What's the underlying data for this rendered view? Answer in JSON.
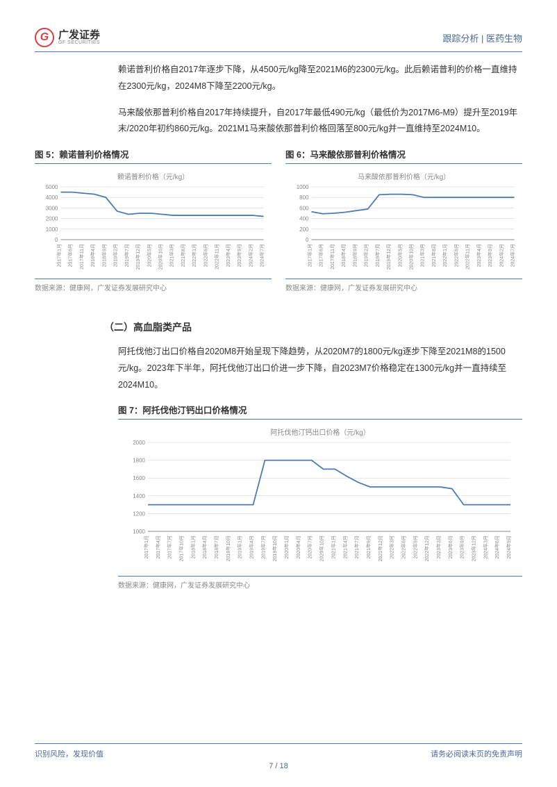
{
  "header": {
    "logo_letter": "G",
    "logo_cn": "广发证券",
    "logo_en": "GF SECURITIES",
    "category": "跟踪分析 | 医药生物"
  },
  "paragraphs": {
    "p1": "赖诺普利价格自2017年逐步下降，从4500元/kg降至2021M6的2300元/kg。此后赖诺普利的价格一直维持在2300元/kg，2024M8下降至2200元/kg。",
    "p2": "马来酸依那普利价格自2017年持续提升，自2017年最低490元/kg（最低价为2017M6-M9）提升至2019年末/2020年初约860元/kg。2021M1马来酸依那普利价格回落至800元/kg并一直维持至2024M10。",
    "p3": "阿托伐他汀出口价格自2020M8开始呈现下降趋势，从2020M7的1800元/kg逐步下降至2021M8的1500元/kg。2023年下半年，阿托伐他汀出口价进一步下降，自2023M7价格稳定在1300元/kg并一直持续至2024M10。"
  },
  "section2_title": "（二）高血脂类产品",
  "fig5": {
    "title": "图 5：赖诺普利价格情况",
    "chart_label": "赖诺普利价格（元/kg）",
    "source": "数据来源：健康网，广发证券发展研究中心",
    "type": "line",
    "ylim": [
      0,
      5000
    ],
    "ytick_step": 1000,
    "yticks": [
      0,
      1000,
      2000,
      3000,
      4000,
      5000
    ],
    "x_labels": [
      "2017年1月",
      "2017年6月",
      "2017年11月",
      "2018年4月",
      "2018年9月",
      "2019年2月",
      "2019年7月",
      "2019年12月",
      "2020年5月",
      "2020年10月",
      "2021年3月",
      "2021年8月",
      "2022年1月",
      "2022年6月",
      "2022年11月",
      "2023年4月",
      "2023年9月",
      "2024年2月",
      "2024年7月"
    ],
    "values": [
      4500,
      4500,
      4400,
      4300,
      4000,
      2700,
      2400,
      2500,
      2500,
      2400,
      2300,
      2300,
      2300,
      2300,
      2300,
      2300,
      2300,
      2300,
      2200
    ],
    "line_color": "#4a7bb5",
    "grid_color": "#cccccc",
    "background_color": "#ffffff"
  },
  "fig6": {
    "title": "图 6：马来酸依那普利价格情况",
    "chart_label": "马来酸依那普利价格（元/kg）",
    "source": "数据来源：健康网，广发证券发展研究中心",
    "type": "line",
    "ylim": [
      0,
      1000
    ],
    "ytick_step": 200,
    "yticks": [
      0,
      200,
      400,
      600,
      800,
      1000
    ],
    "x_labels": [
      "2017年1月",
      "2017年6月",
      "2017年11月",
      "2018年4月",
      "2018年9月",
      "2019年2月",
      "2019年7月",
      "2019年12月",
      "2020年5月",
      "2020年10月",
      "2021年3月",
      "2021年8月",
      "2022年1月",
      "2022年6月",
      "2022年11月",
      "2023年4月",
      "2023年9月",
      "2024年2月",
      "2024年7月"
    ],
    "values": [
      530,
      490,
      500,
      520,
      550,
      580,
      850,
      860,
      860,
      850,
      800,
      800,
      800,
      800,
      800,
      800,
      800,
      800,
      800
    ],
    "line_color": "#4a7bb5",
    "grid_color": "#cccccc",
    "background_color": "#ffffff"
  },
  "fig7": {
    "title": "图 7：阿托伐他汀钙出口价格情况",
    "chart_label": "阿托伐他汀钙出口价格（元/kg）",
    "source": "数据来源：健康网，广发证券发展研究中心",
    "type": "line",
    "ylim": [
      1000,
      2000
    ],
    "ytick_step": 200,
    "yticks": [
      1000,
      1200,
      1400,
      1600,
      1800,
      2000
    ],
    "x_labels": [
      "2017年1月",
      "2017年4月",
      "2017年7月",
      "2017年10月",
      "2018年1月",
      "2018年4月",
      "2018年7月",
      "2018年10月",
      "2019年1月",
      "2019年4月",
      "2019年7月",
      "2019年10月",
      "2020年1月",
      "2020年4月",
      "2020年7月",
      "2020年10月",
      "2021年1月",
      "2021年4月",
      "2021年7月",
      "2021年9月",
      "2021年12月",
      "2022年3月",
      "2022年6月",
      "2022年9月",
      "2022年12月",
      "2023年3月",
      "2023年6月",
      "2023年9月",
      "2023年12月",
      "2024年3月",
      "2024年6月",
      "2024年9月"
    ],
    "values": [
      1300,
      1300,
      1300,
      1300,
      1300,
      1300,
      1300,
      1300,
      1300,
      1300,
      1800,
      1800,
      1800,
      1800,
      1800,
      1700,
      1700,
      1620,
      1550,
      1500,
      1500,
      1500,
      1500,
      1500,
      1500,
      1500,
      1480,
      1300,
      1300,
      1300,
      1300,
      1300
    ],
    "line_color": "#4a7bb5",
    "grid_color": "#cccccc",
    "background_color": "#ffffff"
  },
  "footer": {
    "left": "识别风险，发现价值",
    "right": "请务必阅读末页的免责声明",
    "page": "7 / 18"
  },
  "colors": {
    "accent": "#4a7bb5",
    "text": "#333333",
    "muted": "#888888",
    "red": "#d94040"
  }
}
